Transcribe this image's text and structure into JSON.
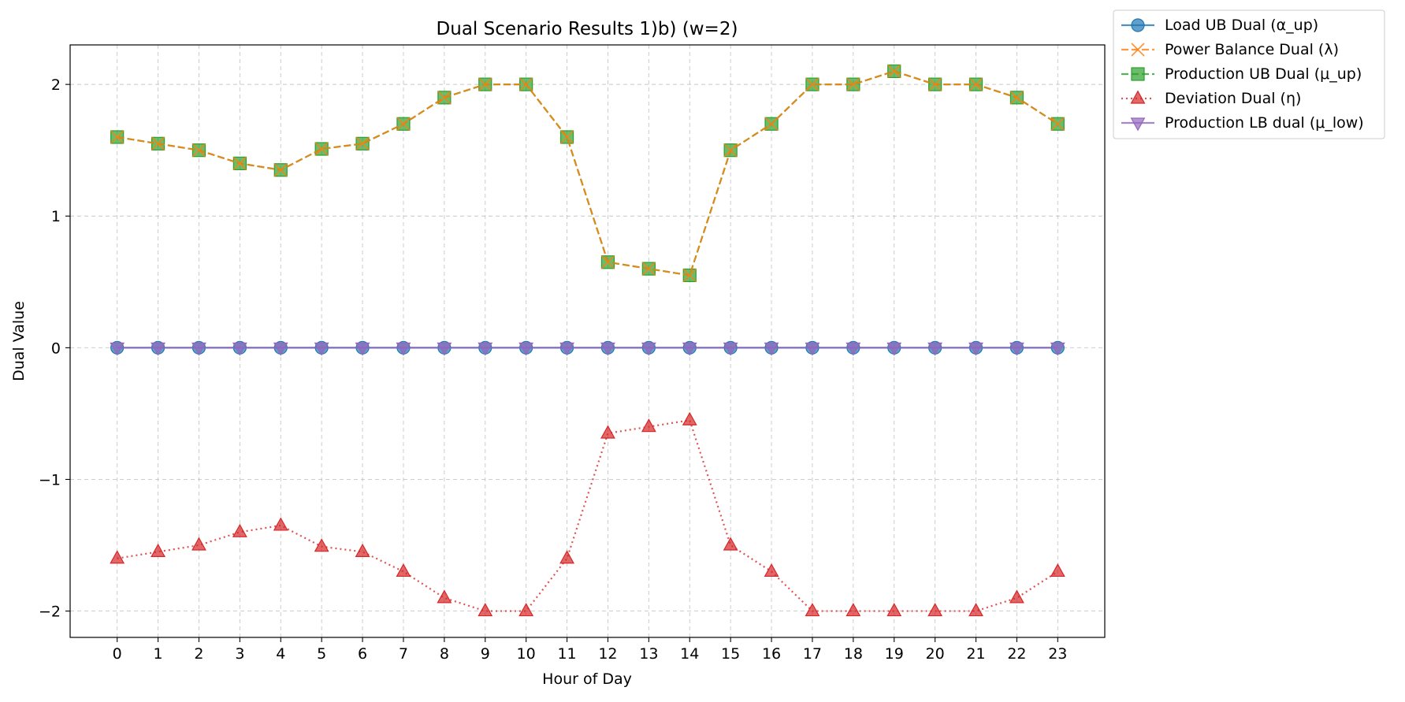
{
  "chart_data": {
    "type": "line",
    "title": "Dual Scenario Results 1)b) (w=2)",
    "xlabel": "Hour of Day",
    "ylabel": "Dual Value",
    "xlim": [
      -1.15,
      24.15
    ],
    "ylim": [
      -2.2,
      2.3
    ],
    "xticks": [
      0,
      1,
      2,
      3,
      4,
      5,
      6,
      7,
      8,
      9,
      10,
      11,
      12,
      13,
      14,
      15,
      16,
      17,
      18,
      19,
      20,
      21,
      22,
      23
    ],
    "yticks": [
      -2,
      -1,
      0,
      1,
      2
    ],
    "ytick_labels": [
      "−2",
      "−1",
      "0",
      "1",
      "2"
    ],
    "grid": true,
    "legend_position": "outside-top-right",
    "x": [
      0,
      1,
      2,
      3,
      4,
      5,
      6,
      7,
      8,
      9,
      10,
      11,
      12,
      13,
      14,
      15,
      16,
      17,
      18,
      19,
      20,
      21,
      22,
      23
    ],
    "series": [
      {
        "name": "Load UB Dual (α_up)",
        "color": "#1f77b4",
        "marker": "circle",
        "linestyle": "solid",
        "values": [
          0,
          0,
          0,
          0,
          0,
          0,
          0,
          0,
          0,
          0,
          0,
          0,
          0,
          0,
          0,
          0,
          0,
          0,
          0,
          0,
          0,
          0,
          0,
          0
        ]
      },
      {
        "name": "Power Balance Dual (λ)",
        "color": "#ff7f0e",
        "marker": "x",
        "linestyle": "dashed",
        "values": [
          1.6,
          1.55,
          1.5,
          1.4,
          1.35,
          1.51,
          1.55,
          1.7,
          1.9,
          2.0,
          2.0,
          1.6,
          0.65,
          0.6,
          0.55,
          1.5,
          1.7,
          2.0,
          2.0,
          2.1,
          2.0,
          2.0,
          1.9,
          1.7
        ]
      },
      {
        "name": "Production UB Dual (μ_up)",
        "color": "#2ca02c",
        "marker": "square",
        "linestyle": "dashed",
        "values": [
          1.6,
          1.55,
          1.5,
          1.4,
          1.35,
          1.51,
          1.55,
          1.7,
          1.9,
          2.0,
          2.0,
          1.6,
          0.65,
          0.6,
          0.55,
          1.5,
          1.7,
          2.0,
          2.0,
          2.1,
          2.0,
          2.0,
          1.9,
          1.7
        ]
      },
      {
        "name": "Deviation Dual (η)",
        "color": "#d62728",
        "marker": "triangle-up",
        "linestyle": "dotted",
        "values": [
          -1.6,
          -1.55,
          -1.5,
          -1.4,
          -1.35,
          -1.51,
          -1.55,
          -1.7,
          -1.9,
          -2.0,
          -2.0,
          -1.6,
          -0.65,
          -0.6,
          -0.55,
          -1.5,
          -1.7,
          -2.0,
          -2.0,
          -2.0,
          -2.0,
          -2.0,
          -1.9,
          -1.7
        ]
      },
      {
        "name": "Production LB dual (μ_low)",
        "color": "#9467bd",
        "marker": "triangle-down",
        "linestyle": "solid",
        "values": [
          0,
          0,
          0,
          0,
          0,
          0,
          0,
          0,
          0,
          0,
          0,
          0,
          0,
          0,
          0,
          0,
          0,
          0,
          0,
          0,
          0,
          0,
          0,
          0
        ]
      }
    ]
  }
}
